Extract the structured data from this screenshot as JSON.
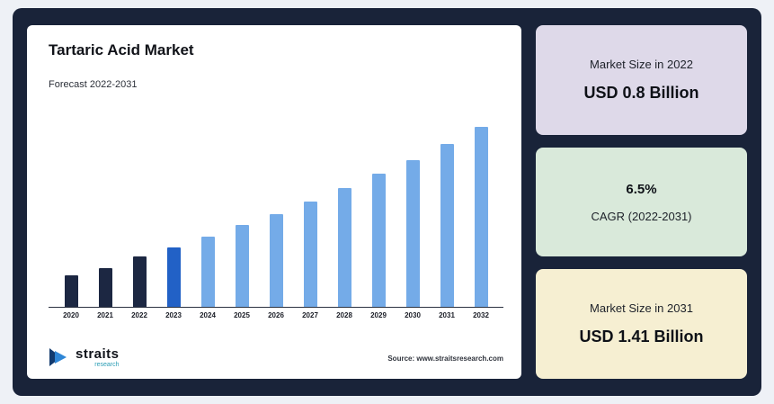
{
  "frame_bg": "#192339",
  "chart_panel": {
    "title": "Tartaric Acid Market",
    "subtitle": "Forecast 2022-2031",
    "source": "Source: www.straitsresearch.com",
    "logo": {
      "name": "straits",
      "sub": "research"
    }
  },
  "chart_data": {
    "type": "bar",
    "title": "Tartaric Acid Market",
    "subtitle": "Forecast 2022-2031",
    "categories": [
      "2020",
      "2021",
      "2022",
      "2023",
      "2024",
      "2025",
      "2026",
      "2027",
      "2028",
      "2029",
      "2030",
      "2031",
      "2032"
    ],
    "values": [
      0.7,
      0.74,
      0.8,
      0.85,
      0.91,
      0.97,
      1.03,
      1.1,
      1.17,
      1.25,
      1.32,
      1.41,
      1.5
    ],
    "unit": "USD Billion",
    "ylim": [
      0.5,
      1.55
    ],
    "grid": false,
    "legend": "none",
    "bar_colors": [
      "#1c2742",
      "#1c2742",
      "#1c2742",
      "#2261c6",
      "#74abe8",
      "#74abe8",
      "#74abe8",
      "#74abe8",
      "#74abe8",
      "#74abe8",
      "#74abe8",
      "#74abe8",
      "#74abe8"
    ]
  },
  "cards": [
    {
      "label": "Market Size in 2022",
      "value": "USD 0.8 Billion",
      "bg": "#ded9e9"
    },
    {
      "value": "6.5%",
      "label": "CAGR (2022-2031)",
      "bg": "#d9e9da"
    },
    {
      "label": "Market Size in 2031",
      "value": "USD 1.41 Billion",
      "bg": "#f6efd2"
    }
  ]
}
